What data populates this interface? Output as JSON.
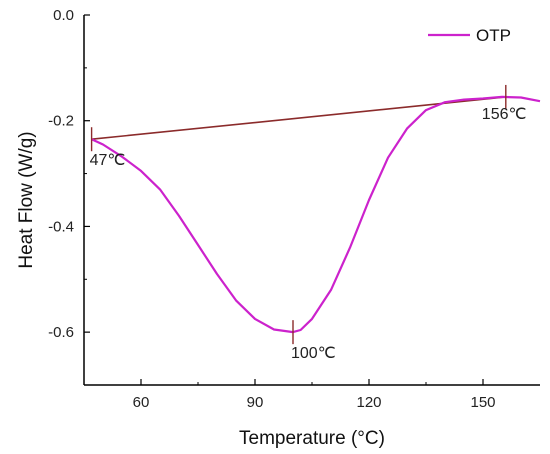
{
  "chart_data": {
    "type": "line",
    "xlabel": "Temperature (°C)",
    "ylabel": "Heat Flow (W/g)",
    "xlim": [
      45,
      165
    ],
    "ylim": [
      -0.7,
      0.0
    ],
    "x_ticks": [
      60,
      90,
      120,
      150
    ],
    "x_tick_labels": [
      "60",
      "90",
      "120",
      "150"
    ],
    "y_ticks": [
      0.0,
      -0.2,
      -0.4,
      -0.6
    ],
    "y_tick_labels": [
      "0.0",
      "-0.2",
      "-0.4",
      "-0.6"
    ],
    "grid": false,
    "legend_position": "top-right",
    "series": [
      {
        "name": "OTP",
        "color": "#cc22cc",
        "x": [
          47,
          50,
          55,
          60,
          65,
          70,
          75,
          80,
          85,
          90,
          95,
          100,
          102,
          105,
          110,
          115,
          120,
          125,
          130,
          135,
          140,
          145,
          150,
          155,
          160,
          165
        ],
        "y": [
          -0.235,
          -0.245,
          -0.268,
          -0.295,
          -0.33,
          -0.38,
          -0.435,
          -0.49,
          -0.54,
          -0.575,
          -0.595,
          -0.6,
          -0.596,
          -0.575,
          -0.52,
          -0.44,
          -0.35,
          -0.27,
          -0.215,
          -0.18,
          -0.165,
          -0.16,
          -0.158,
          -0.155,
          -0.156,
          -0.163
        ]
      }
    ],
    "baseline": {
      "color": "#8b2b2b",
      "x": [
        47,
        156
      ],
      "y": [
        -0.235,
        -0.155
      ]
    },
    "annotations": [
      {
        "text": "47℃",
        "x": 47,
        "y": -0.235
      },
      {
        "text": "100℃",
        "x": 100,
        "y": -0.6
      },
      {
        "text": "156℃",
        "x": 156,
        "y": -0.155
      }
    ]
  }
}
